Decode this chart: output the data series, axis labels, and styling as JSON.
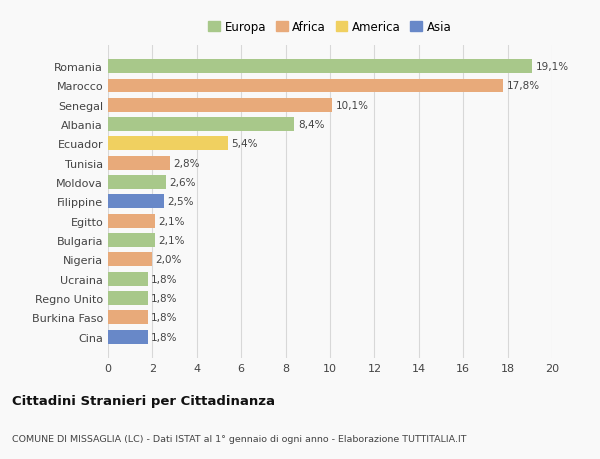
{
  "countries": [
    "Romania",
    "Marocco",
    "Senegal",
    "Albania",
    "Ecuador",
    "Tunisia",
    "Moldova",
    "Filippine",
    "Egitto",
    "Bulgaria",
    "Nigeria",
    "Ucraina",
    "Regno Unito",
    "Burkina Faso",
    "Cina"
  ],
  "values": [
    19.1,
    17.8,
    10.1,
    8.4,
    5.4,
    2.8,
    2.6,
    2.5,
    2.1,
    2.1,
    2.0,
    1.8,
    1.8,
    1.8,
    1.8
  ],
  "labels": [
    "19,1%",
    "17,8%",
    "10,1%",
    "8,4%",
    "5,4%",
    "2,8%",
    "2,6%",
    "2,5%",
    "2,1%",
    "2,1%",
    "2,0%",
    "1,8%",
    "1,8%",
    "1,8%",
    "1,8%"
  ],
  "continents": [
    "Europa",
    "Africa",
    "Africa",
    "Europa",
    "America",
    "Africa",
    "Europa",
    "Asia",
    "Africa",
    "Europa",
    "Africa",
    "Europa",
    "Europa",
    "Africa",
    "Asia"
  ],
  "continent_colors": {
    "Europa": "#a8c88a",
    "Africa": "#e8aa7a",
    "America": "#f0d060",
    "Asia": "#6888c8"
  },
  "legend_labels": [
    "Europa",
    "Africa",
    "America",
    "Asia"
  ],
  "legend_colors": [
    "#a8c88a",
    "#e8aa7a",
    "#f0d060",
    "#6888c8"
  ],
  "title": "Cittadini Stranieri per Cittadinanza",
  "subtitle": "COMUNE DI MISSAGLIA (LC) - Dati ISTAT al 1° gennaio di ogni anno - Elaborazione TUTTITALIA.IT",
  "xlim": [
    0,
    20
  ],
  "xticks": [
    0,
    2,
    4,
    6,
    8,
    10,
    12,
    14,
    16,
    18,
    20
  ],
  "background_color": "#f9f9f9",
  "grid_color": "#d8d8d8",
  "bar_height": 0.72
}
